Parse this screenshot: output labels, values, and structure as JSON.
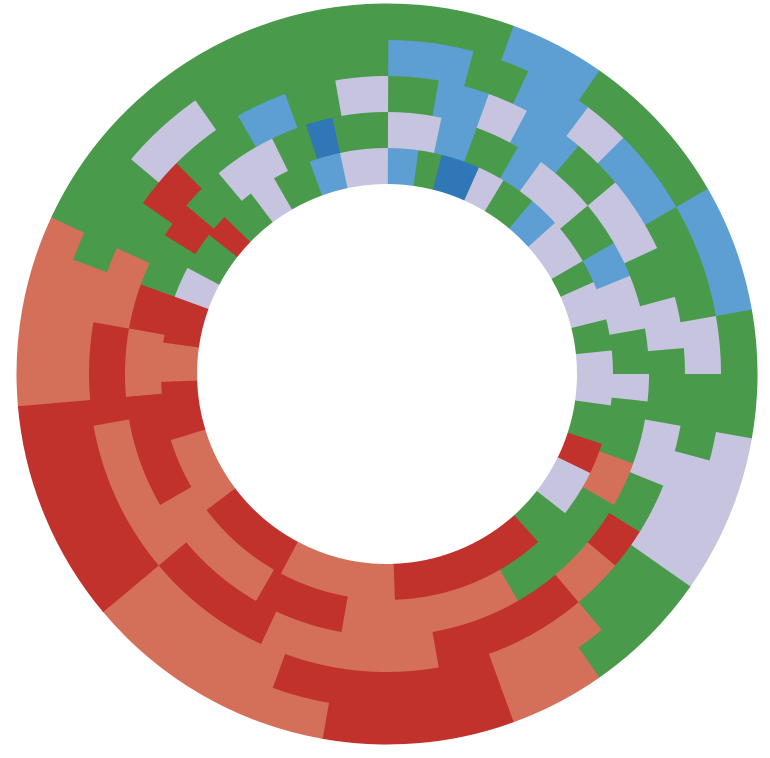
{
  "chart_data": {
    "type": "sunburst",
    "palette": [
      "#4a9a4c",
      "#5d9fd2",
      "#2f77b6",
      "#c6c4df",
      "#c1322c",
      "#d4705a"
    ],
    "rings": [
      {
        "values": [
          8,
          6,
          10,
          7,
          9,
          8,
          12,
          6,
          10,
          8,
          14,
          10,
          8,
          12,
          10,
          40,
          30,
          25,
          20,
          15,
          10,
          12,
          8,
          10,
          6,
          9,
          7,
          10,
          8,
          12
        ],
        "colors": [
          1,
          0,
          2,
          3,
          0,
          1,
          3,
          0,
          3,
          0,
          3,
          0,
          4,
          3,
          0,
          4,
          5,
          4,
          5,
          4,
          5,
          4,
          3,
          0,
          4,
          0,
          3,
          0,
          1,
          3
        ]
      },
      {
        "values": [
          12,
          8,
          10,
          6,
          14,
          10,
          8,
          12,
          10,
          6,
          14,
          10,
          30,
          40,
          20,
          30,
          25,
          15,
          10,
          12,
          8,
          10,
          14,
          8,
          6,
          12
        ],
        "colors": [
          3,
          1,
          0,
          1,
          3,
          0,
          1,
          3,
          0,
          3,
          0,
          5,
          0,
          5,
          4,
          5,
          4,
          5,
          4,
          0,
          4,
          0,
          3,
          0,
          2,
          0
        ]
      },
      {
        "values": [
          10,
          10,
          8,
          12,
          10,
          15,
          10,
          10,
          15,
          12,
          10,
          8,
          10,
          30,
          35,
          25,
          30,
          20,
          15,
          10,
          10,
          15,
          10,
          10,
          10
        ],
        "colors": [
          0,
          1,
          3,
          1,
          0,
          3,
          0,
          3,
          0,
          3,
          0,
          4,
          5,
          4,
          5,
          4,
          5,
          4,
          5,
          0,
          4,
          0,
          1,
          0,
          3
        ]
      },
      {
        "values": [
          15,
          10,
          12,
          8,
          15,
          20,
          10,
          15,
          20,
          15,
          20,
          40,
          30,
          35,
          25,
          20,
          15,
          20,
          15
        ],
        "colors": [
          1,
          0,
          1,
          3,
          1,
          0,
          3,
          0,
          3,
          0,
          5,
          4,
          5,
          4,
          5,
          0,
          3,
          0,
          0
        ]
      },
      {
        "values": [
          20,
          15,
          25,
          20,
          20,
          25,
          20,
          15,
          30,
          40,
          35,
          30,
          25,
          20,
          20
        ],
        "colors": [
          0,
          1,
          0,
          1,
          0,
          3,
          0,
          5,
          4,
          5,
          4,
          5,
          0,
          0,
          0
        ]
      }
    ]
  }
}
